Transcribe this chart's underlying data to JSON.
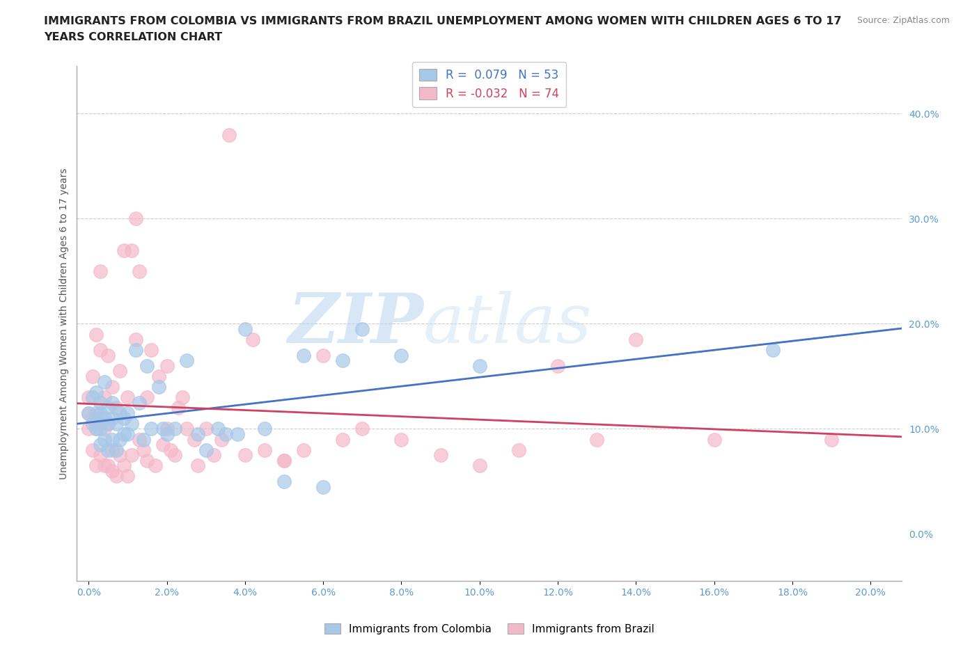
{
  "title_line1": "IMMIGRANTS FROM COLOMBIA VS IMMIGRANTS FROM BRAZIL UNEMPLOYMENT AMONG WOMEN WITH CHILDREN AGES 6 TO 17",
  "title_line2": "YEARS CORRELATION CHART",
  "source": "Source: ZipAtlas.com",
  "xlabel_ticks": [
    0.0,
    0.02,
    0.04,
    0.06,
    0.08,
    0.1,
    0.12,
    0.14,
    0.16,
    0.18,
    0.2
  ],
  "ylabel_ticks": [
    0.0,
    0.1,
    0.2,
    0.3,
    0.4
  ],
  "xlim": [
    -0.003,
    0.208
  ],
  "ylim": [
    -0.045,
    0.445
  ],
  "colombia_R": 0.079,
  "colombia_N": 53,
  "brazil_R": -0.032,
  "brazil_N": 74,
  "colombia_color": "#a8c8e8",
  "brazil_color": "#f4b8cb",
  "colombia_line_color": "#4472c4",
  "brazil_line_color": "#d04060",
  "watermark_zip": "ZIP",
  "watermark_atlas": "atlas",
  "colombia_x": [
    0.0,
    0.001,
    0.001,
    0.002,
    0.002,
    0.002,
    0.003,
    0.003,
    0.003,
    0.003,
    0.004,
    0.004,
    0.004,
    0.005,
    0.005,
    0.005,
    0.006,
    0.006,
    0.006,
    0.007,
    0.007,
    0.008,
    0.008,
    0.009,
    0.009,
    0.01,
    0.01,
    0.011,
    0.012,
    0.013,
    0.014,
    0.015,
    0.016,
    0.018,
    0.019,
    0.02,
    0.022,
    0.025,
    0.028,
    0.03,
    0.033,
    0.035,
    0.038,
    0.04,
    0.045,
    0.05,
    0.055,
    0.06,
    0.065,
    0.07,
    0.08,
    0.1,
    0.175
  ],
  "colombia_y": [
    0.115,
    0.105,
    0.13,
    0.1,
    0.115,
    0.135,
    0.085,
    0.1,
    0.115,
    0.125,
    0.09,
    0.11,
    0.145,
    0.08,
    0.105,
    0.12,
    0.09,
    0.11,
    0.125,
    0.08,
    0.105,
    0.09,
    0.115,
    0.095,
    0.11,
    0.095,
    0.115,
    0.105,
    0.175,
    0.125,
    0.09,
    0.16,
    0.1,
    0.14,
    0.1,
    0.095,
    0.1,
    0.165,
    0.095,
    0.08,
    0.1,
    0.095,
    0.095,
    0.195,
    0.1,
    0.05,
    0.17,
    0.045,
    0.165,
    0.195,
    0.17,
    0.16,
    0.175
  ],
  "brazil_x": [
    0.0,
    0.0,
    0.0,
    0.001,
    0.001,
    0.001,
    0.002,
    0.002,
    0.002,
    0.003,
    0.003,
    0.003,
    0.004,
    0.004,
    0.004,
    0.005,
    0.005,
    0.005,
    0.006,
    0.006,
    0.006,
    0.007,
    0.007,
    0.008,
    0.008,
    0.009,
    0.009,
    0.01,
    0.01,
    0.011,
    0.011,
    0.012,
    0.012,
    0.013,
    0.013,
    0.014,
    0.015,
    0.016,
    0.017,
    0.018,
    0.019,
    0.02,
    0.021,
    0.022,
    0.023,
    0.024,
    0.025,
    0.027,
    0.028,
    0.03,
    0.032,
    0.034,
    0.036,
    0.04,
    0.042,
    0.045,
    0.05,
    0.055,
    0.06,
    0.065,
    0.07,
    0.08,
    0.09,
    0.1,
    0.11,
    0.12,
    0.13,
    0.14,
    0.16,
    0.19,
    0.015,
    0.02,
    0.003,
    0.05
  ],
  "brazil_y": [
    0.1,
    0.115,
    0.13,
    0.08,
    0.11,
    0.15,
    0.065,
    0.1,
    0.19,
    0.075,
    0.11,
    0.175,
    0.065,
    0.1,
    0.13,
    0.065,
    0.105,
    0.17,
    0.08,
    0.14,
    0.06,
    0.055,
    0.12,
    0.075,
    0.155,
    0.065,
    0.27,
    0.055,
    0.13,
    0.075,
    0.27,
    0.185,
    0.3,
    0.09,
    0.25,
    0.08,
    0.07,
    0.175,
    0.065,
    0.15,
    0.085,
    0.1,
    0.08,
    0.075,
    0.12,
    0.13,
    0.1,
    0.09,
    0.065,
    0.1,
    0.075,
    0.09,
    0.38,
    0.075,
    0.185,
    0.08,
    0.07,
    0.08,
    0.17,
    0.09,
    0.1,
    0.09,
    0.075,
    0.065,
    0.08,
    0.16,
    0.09,
    0.185,
    0.09,
    0.09,
    0.13,
    0.16,
    0.25,
    0.07
  ]
}
